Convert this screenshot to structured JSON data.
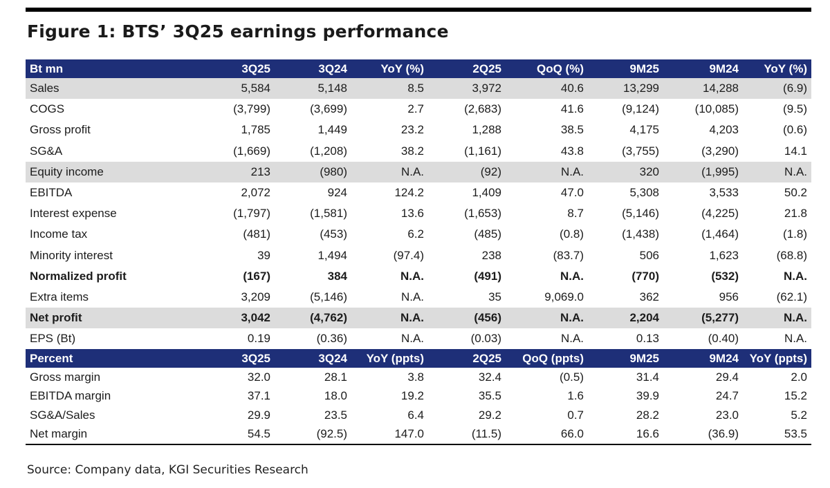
{
  "title": "Figure 1: BTS’ 3Q25 earnings performance",
  "header1": [
    "Bt mn",
    "3Q25",
    "3Q24",
    "YoY (%)",
    "2Q25",
    "QoQ (%)",
    "9M25",
    "9M24",
    "YoY (%)"
  ],
  "rows": [
    {
      "label": "Sales",
      "values": [
        "5,584",
        "5,148",
        "8.5",
        "3,972",
        "40.6",
        "13,299",
        "14,288",
        "(6.9)"
      ],
      "shaded": true,
      "bold": false
    },
    {
      "label": "COGS",
      "values": [
        "(3,799)",
        "(3,699)",
        "2.7",
        "(2,683)",
        "41.6",
        "(9,124)",
        "(10,085)",
        "(9.5)"
      ],
      "shaded": false,
      "bold": false
    },
    {
      "label": "Gross profit",
      "values": [
        "1,785",
        "1,449",
        "23.2",
        "1,288",
        "38.5",
        "4,175",
        "4,203",
        "(0.6)"
      ],
      "shaded": false,
      "bold": false
    },
    {
      "label": "SG&A",
      "values": [
        "(1,669)",
        "(1,208)",
        "38.2",
        "(1,161)",
        "43.8",
        "(3,755)",
        "(3,290)",
        "14.1"
      ],
      "shaded": false,
      "bold": false
    },
    {
      "label": "Equity income",
      "values": [
        "213",
        "(980)",
        "N.A.",
        "(92)",
        "N.A.",
        "320",
        "(1,995)",
        "N.A."
      ],
      "shaded": true,
      "bold": false
    },
    {
      "label": "EBITDA",
      "values": [
        "2,072",
        "924",
        "124.2",
        "1,409",
        "47.0",
        "5,308",
        "3,533",
        "50.2"
      ],
      "shaded": false,
      "bold": false
    },
    {
      "label": "Interest expense",
      "values": [
        "(1,797)",
        "(1,581)",
        "13.6",
        "(1,653)",
        "8.7",
        "(5,146)",
        "(4,225)",
        "21.8"
      ],
      "shaded": false,
      "bold": false
    },
    {
      "label": "Income tax",
      "values": [
        "(481)",
        "(453)",
        "6.2",
        "(485)",
        "(0.8)",
        "(1,438)",
        "(1,464)",
        "(1.8)"
      ],
      "shaded": false,
      "bold": false
    },
    {
      "label": "Minority interest",
      "values": [
        "39",
        "1,494",
        "(97.4)",
        "238",
        "(83.7)",
        "506",
        "1,623",
        "(68.8)"
      ],
      "shaded": false,
      "bold": false
    },
    {
      "label": "Normalized profit",
      "values": [
        "(167)",
        "384",
        "N.A.",
        "(491)",
        "N.A.",
        "(770)",
        "(532)",
        "N.A."
      ],
      "shaded": false,
      "bold": true
    },
    {
      "label": "Extra items",
      "values": [
        "3,209",
        "(5,146)",
        "N.A.",
        "35",
        "9,069.0",
        "362",
        "956",
        "(62.1)"
      ],
      "shaded": false,
      "bold": false
    },
    {
      "label": "Net profit",
      "values": [
        "3,042",
        "(4,762)",
        "N.A.",
        "(456)",
        "N.A.",
        "2,204",
        "(5,277)",
        "N.A."
      ],
      "shaded": true,
      "bold": true
    },
    {
      "label": "EPS (Bt)",
      "values": [
        "0.19",
        "(0.36)",
        "N.A.",
        "(0.03)",
        "N.A.",
        "0.13",
        "(0.40)",
        "N.A."
      ],
      "shaded": false,
      "bold": false
    }
  ],
  "header2": [
    "Percent",
    "3Q25",
    "3Q24",
    "YoY (ppts)",
    "2Q25",
    "QoQ (ppts)",
    "9M25",
    "9M24",
    "YoY (ppts)"
  ],
  "percent_rows": [
    {
      "label": "Gross margin",
      "values": [
        "32.0",
        "28.1",
        "3.8",
        "32.4",
        "(0.5)",
        "31.4",
        "29.4",
        "2.0"
      ]
    },
    {
      "label": "EBITDA margin",
      "values": [
        "37.1",
        "18.0",
        "19.2",
        "35.5",
        "1.6",
        "39.9",
        "24.7",
        "15.2"
      ]
    },
    {
      "label": "SG&A/Sales",
      "values": [
        "29.9",
        "23.5",
        "6.4",
        "29.2",
        "0.7",
        "28.2",
        "23.0",
        "5.2"
      ]
    },
    {
      "label": "Net margin",
      "values": [
        "54.5",
        "(92.5)",
        "147.0",
        "(11.5)",
        "66.0",
        "16.6",
        "(36.9)",
        "53.5"
      ]
    }
  ],
  "source": "Source: Company data, KGI Securities Research"
}
